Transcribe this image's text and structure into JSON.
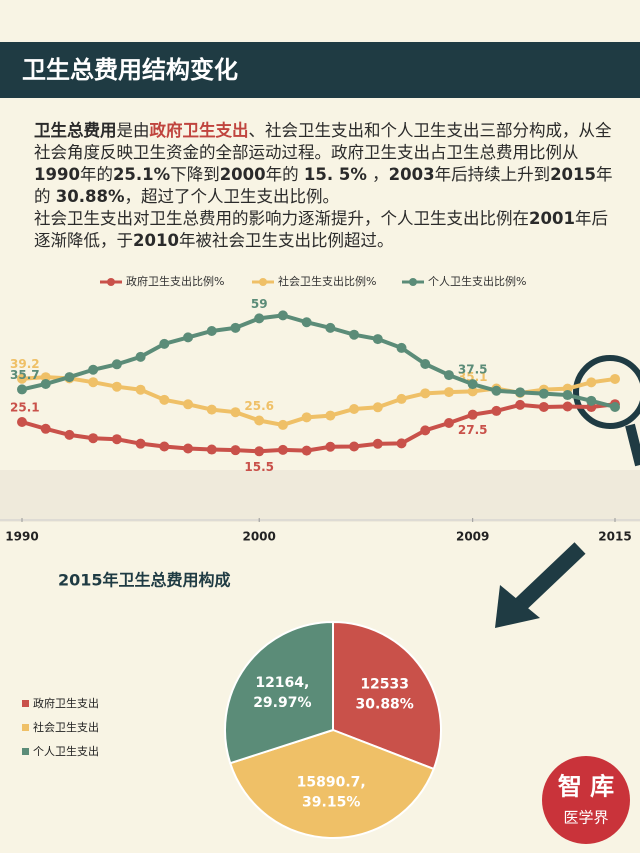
{
  "header": {
    "title": "卫生总费用结构变化"
  },
  "intro": {
    "paragraphs": [
      [
        "卫生总费用",
        "是由",
        "政府卫生支出",
        "、社会卫生支出和个人卫生支出三部分构成，从全社会角度反映卫生资金的全部运动过程。政府卫生支出占卫生总费用比例从 ",
        "1990",
        "年的",
        "25.1%",
        "下降到",
        "2000",
        "年的 ",
        "15. 5%",
        " ，",
        "2003",
        "年后持续上升到",
        "2015",
        "年的 ",
        "30.88%",
        "，超过了个人卫生支出比例。"
      ],
      [
        "社会卫生支出对卫生总费用的影响力逐渐提升，个人卫生支出比例在",
        "2001",
        "年后逐渐降低，于",
        "2010",
        "年被社会卫生支出比例超过。"
      ]
    ]
  },
  "chart_data": [
    {
      "type": "line",
      "x": [
        1990,
        1991,
        1992,
        1993,
        1994,
        1995,
        1996,
        1997,
        1998,
        1999,
        2000,
        2001,
        2002,
        2003,
        2004,
        2005,
        2006,
        2007,
        2008,
        2009,
        2010,
        2011,
        2012,
        2013,
        2014,
        2015
      ],
      "xlim": [
        1990,
        2015
      ],
      "xticks": [
        1990,
        2000,
        2009,
        2015
      ],
      "ylim": [
        10,
        65
      ],
      "series": [
        {
          "name": "政府卫生支出比例%",
          "color": "#c9514a",
          "values": [
            25.06,
            22.84,
            20.84,
            19.75,
            19.43,
            17.97,
            17.04,
            16.38,
            16.04,
            15.84,
            15.47,
            15.93,
            15.69,
            16.96,
            17.04,
            17.93,
            18.07,
            22.31,
            24.73,
            27.46,
            28.69,
            30.66,
            29.99,
            30.14,
            29.96,
            30.88
          ],
          "value_labels": [
            "25.1",
            null,
            null,
            null,
            null,
            null,
            null,
            null,
            null,
            null,
            "15.5",
            null,
            null,
            null,
            null,
            null,
            null,
            null,
            null,
            "27.5",
            null,
            null,
            null,
            null,
            null,
            null
          ]
        },
        {
          "name": "社会卫生支出比例%",
          "color": "#efc067",
          "values": [
            39.22,
            39.73,
            39.34,
            38.09,
            36.62,
            35.63,
            32.32,
            30.86,
            29.11,
            28.27,
            25.55,
            24.1,
            26.59,
            27.16,
            29.32,
            29.87,
            32.62,
            34.45,
            34.85,
            35.08,
            36.02,
            34.57,
            35.67,
            35.98,
            38.05,
            39.15
          ],
          "value_labels": [
            "39.2",
            null,
            null,
            null,
            null,
            null,
            null,
            null,
            null,
            null,
            "25.6",
            null,
            null,
            null,
            null,
            null,
            null,
            null,
            null,
            "35.1",
            null,
            null,
            null,
            null,
            null,
            null
          ]
        },
        {
          "name": "个人卫生支出比例%",
          "color": "#5b8c78",
          "values": [
            35.73,
            37.5,
            39.77,
            42.16,
            43.95,
            46.4,
            50.64,
            52.76,
            54.85,
            55.89,
            58.98,
            59.97,
            57.72,
            55.87,
            53.64,
            52.21,
            49.31,
            44.05,
            40.42,
            37.46,
            35.29,
            34.77,
            34.34,
            33.88,
            31.99,
            29.97
          ],
          "value_labels": [
            "35.7",
            null,
            null,
            null,
            null,
            null,
            null,
            null,
            null,
            null,
            "59",
            null,
            null,
            null,
            null,
            null,
            null,
            null,
            null,
            "37.5",
            null,
            null,
            null,
            null,
            null,
            null
          ]
        }
      ]
    },
    {
      "type": "pie",
      "title": "2015年卫生总费用构成",
      "categories": [
        "政府卫生支出",
        "社会卫生支出",
        "个人卫生支出"
      ],
      "values": [
        12533,
        15890.7,
        12164
      ],
      "value_labels": [
        "12533",
        "15890.7,",
        "12164,"
      ],
      "percents": [
        30.88,
        39.15,
        29.97
      ],
      "percent_labels": [
        "30.88%",
        "39.15%",
        "29.97%"
      ],
      "colors": [
        "#c9514a",
        "#efc067",
        "#5b8c78"
      ]
    }
  ],
  "logo": {
    "line1": "智 库",
    "line2": "医学界"
  }
}
